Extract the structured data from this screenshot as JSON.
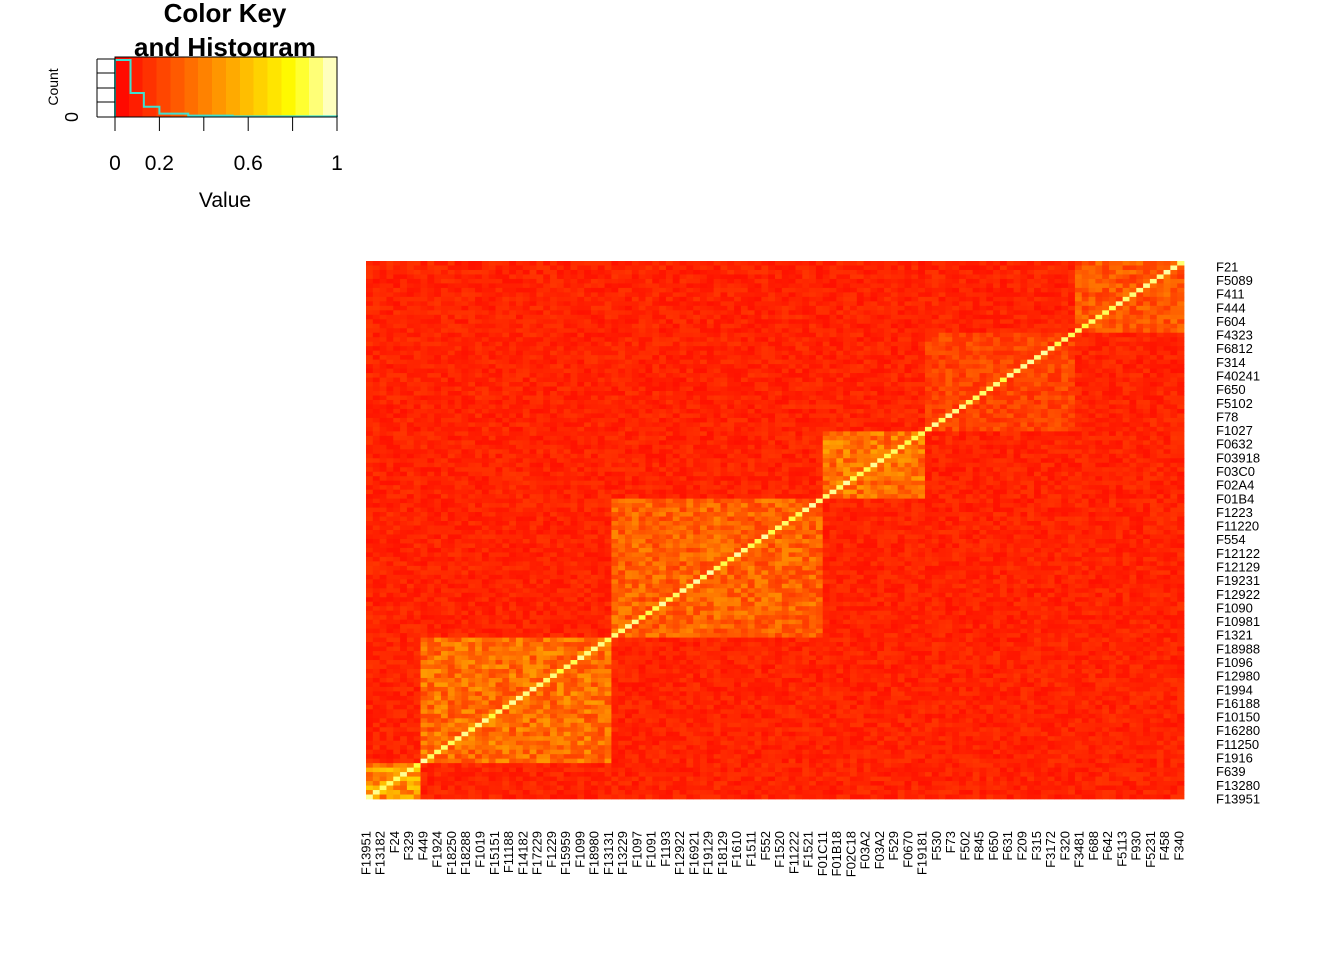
{
  "chart_data": [
    {
      "type": "histogram",
      "title": "Color Key\nand Histogram",
      "xlabel": "Value",
      "ylabel": "Count",
      "xlim": [
        0,
        1
      ],
      "x_tick_labels": [
        "0",
        "0.2",
        "0.6",
        "1"
      ],
      "x_ticks": [
        0,
        0.2,
        0.6,
        1
      ],
      "y_tick_labels": [
        "0"
      ],
      "colorscale": [
        "#ff0000",
        "#ff4000",
        "#ff8000",
        "#ffc000",
        "#ffff00",
        "#ffffe0"
      ],
      "hist_line_color": "#40e0d0",
      "bins": [
        {
          "x0": 0.0,
          "x1": 0.07,
          "rel": 1.0
        },
        {
          "x0": 0.07,
          "x1": 0.13,
          "rel": 0.42
        },
        {
          "x0": 0.13,
          "x1": 0.2,
          "rel": 0.18
        },
        {
          "x0": 0.2,
          "x1": 0.33,
          "rel": 0.06
        },
        {
          "x0": 0.33,
          "x1": 0.53,
          "rel": 0.025
        },
        {
          "x0": 0.53,
          "x1": 1.0,
          "rel": 0.01
        }
      ]
    },
    {
      "type": "heatmap",
      "colorscale": [
        "#ff0000",
        "#ff4000",
        "#ff8000",
        "#ffc000",
        "#ffff00",
        "#ffffe0"
      ],
      "value_range": [
        0,
        1
      ],
      "row_labels": [
        "F21",
        "F5089",
        "F411",
        "F444",
        "F604",
        "F4323",
        "F6812",
        "F314",
        "F40241",
        "F650",
        "F5102",
        "F78",
        "F1027",
        "F0632",
        "F03918",
        "F03C0",
        "F02A4",
        "F01B4",
        "F1223",
        "F11220",
        "F554",
        "F12122",
        "F12129",
        "F19231",
        "F12922",
        "F1090",
        "F10981",
        "F1321",
        "F18988",
        "F1096",
        "F12980",
        "F1994",
        "F16188",
        "F10150",
        "F16280",
        "F11250",
        "F1916",
        "F639",
        "F13280",
        "F13951"
      ],
      "col_labels": [
        "F13951",
        "F13182",
        "F24",
        "F329",
        "F449",
        "F1924",
        "F18250",
        "F18288",
        "F1019",
        "F15151",
        "F11188",
        "F14182",
        "F17229",
        "F1229",
        "F15959",
        "F1099",
        "F18980",
        "F13131",
        "F13229",
        "F1097",
        "F1091",
        "F1193",
        "F12922",
        "F16921",
        "F19129",
        "F18129",
        "F1610",
        "F1511",
        "F552",
        "F1520",
        "F11222",
        "F1521",
        "F01C11",
        "F01B18",
        "F02C18",
        "F03A2",
        "F03A2",
        "F529",
        "F0670",
        "F19181",
        "F530",
        "F73",
        "F502",
        "F845",
        "F650",
        "F631",
        "F209",
        "F315",
        "F3172",
        "F320",
        "F3481",
        "F688",
        "F642",
        "F5113",
        "F930",
        "F5231",
        "F458",
        "F340"
      ],
      "blocks": [
        {
          "from": 0.0,
          "to": 0.07,
          "level": 0.48
        },
        {
          "from": 0.07,
          "to": 0.3,
          "level": 0.36
        },
        {
          "from": 0.3,
          "to": 0.56,
          "level": 0.32
        },
        {
          "from": 0.56,
          "to": 0.68,
          "level": 0.38
        },
        {
          "from": 0.68,
          "to": 0.87,
          "level": 0.22
        },
        {
          "from": 0.87,
          "to": 1.0,
          "level": 0.28
        }
      ]
    }
  ]
}
